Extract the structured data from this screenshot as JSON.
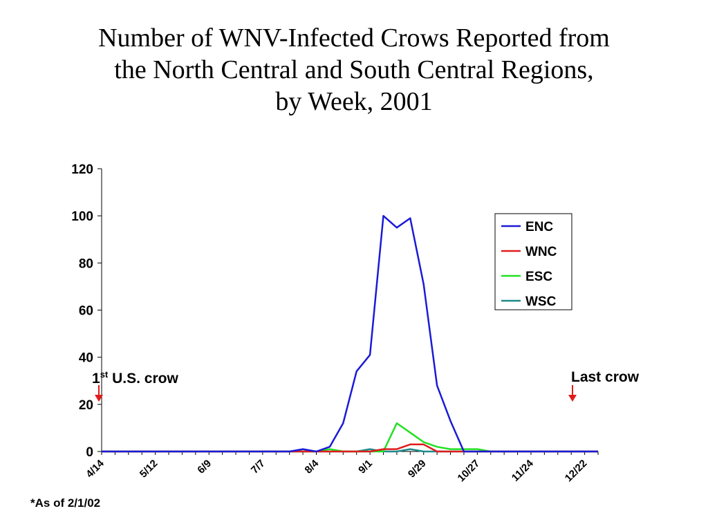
{
  "title_lines": [
    "Number of WNV-Infected Crows Reported from",
    "the North Central and South Central Regions,",
    "by Week, 2001"
  ],
  "annotations": {
    "first_crow_number": "1",
    "first_crow_sup": "st",
    "first_crow_text": " U.S. crow",
    "last_crow": "Last crow"
  },
  "footnote": "*As of 2/1/02",
  "colors": {
    "ENC": "#1a1ad6",
    "WNC": "#e01b1b",
    "ESC": "#22e022",
    "WSC": "#1d8a8a",
    "arrow": "#e01b1b"
  },
  "chart_data": {
    "type": "line",
    "title": "Number of WNV-Infected Crows Reported from the North Central and South Central Regions, by Week, 2001",
    "xlabel": "",
    "ylabel": "",
    "ylim": [
      0,
      120
    ],
    "yticks": [
      0,
      20,
      40,
      60,
      80,
      100,
      120
    ],
    "x_tick_labels": [
      "4/14",
      "5/12",
      "6/9",
      "7/7",
      "8/4",
      "9/1",
      "9/29",
      "10/27",
      "11/24",
      "12/22"
    ],
    "x_tick_every": 4,
    "num_weeks": 38,
    "legend_position": "right",
    "series": [
      {
        "name": "ENC",
        "values": [
          0,
          0,
          0,
          0,
          0,
          0,
          0,
          0,
          0,
          0,
          0,
          0,
          0,
          0,
          0,
          1,
          0,
          2,
          12,
          34,
          41,
          100,
          95,
          99,
          71,
          28,
          13,
          0,
          0,
          0,
          0,
          0,
          0,
          0,
          0,
          0,
          0,
          0
        ]
      },
      {
        "name": "WNC",
        "values": [
          0,
          0,
          0,
          0,
          0,
          0,
          0,
          0,
          0,
          0,
          0,
          0,
          0,
          0,
          0,
          0,
          0,
          0,
          0,
          0,
          0,
          1,
          1,
          3,
          3,
          0,
          0,
          0,
          0,
          0,
          0,
          0,
          0,
          0,
          0,
          0,
          0,
          0
        ]
      },
      {
        "name": "ESC",
        "values": [
          0,
          0,
          0,
          0,
          0,
          0,
          0,
          0,
          0,
          0,
          0,
          0,
          0,
          0,
          0,
          0,
          0,
          1,
          0,
          0,
          0,
          0,
          12,
          8,
          4,
          2,
          1,
          1,
          1,
          0,
          0,
          0,
          0,
          0,
          0,
          0,
          0,
          0
        ]
      },
      {
        "name": "WSC",
        "values": [
          0,
          0,
          0,
          0,
          0,
          0,
          0,
          0,
          0,
          0,
          0,
          0,
          0,
          0,
          0,
          0,
          0,
          0,
          0,
          0,
          1,
          0,
          0,
          1,
          0,
          0,
          0,
          0,
          0,
          0,
          0,
          0,
          0,
          0,
          0,
          0,
          0,
          0
        ]
      }
    ]
  }
}
